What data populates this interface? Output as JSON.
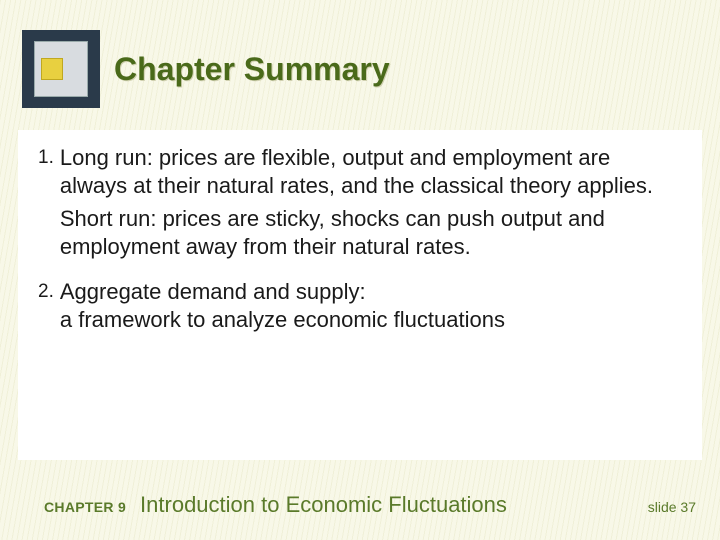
{
  "colors": {
    "background": "#f8f8e8",
    "stripe": "#f0f0d8",
    "title_color": "#4a6a1a",
    "title_shadow": "#d0d0b0",
    "body_text": "#1a1a1a",
    "footer_text": "#5a7a2a",
    "content_bg": "#ffffff",
    "icon_outer": "#2a3a4a",
    "icon_inner": "#d8dce0",
    "icon_label": "#e8d040"
  },
  "typography": {
    "title_fontsize": 32,
    "body_fontsize": 22,
    "number_fontsize": 19,
    "footer_label_fontsize": 14,
    "footer_title_fontsize": 22,
    "slide_num_fontsize": 14,
    "font_family": "Arial"
  },
  "title": "Chapter Summary",
  "items": [
    {
      "number": "1.",
      "para1": "Long run: prices are flexible, output and employment are always at their natural rates, and the classical theory applies.",
      "para2": "Short run:  prices are sticky, shocks can push output and employment away from their natural rates."
    },
    {
      "number": "2.",
      "para1": "Aggregate demand and supply:",
      "para2": "a framework to analyze economic fluctuations"
    }
  ],
  "footer": {
    "chapter_label": "CHAPTER 9",
    "chapter_title": "Introduction to Economic Fluctuations",
    "slide": "slide 37"
  }
}
